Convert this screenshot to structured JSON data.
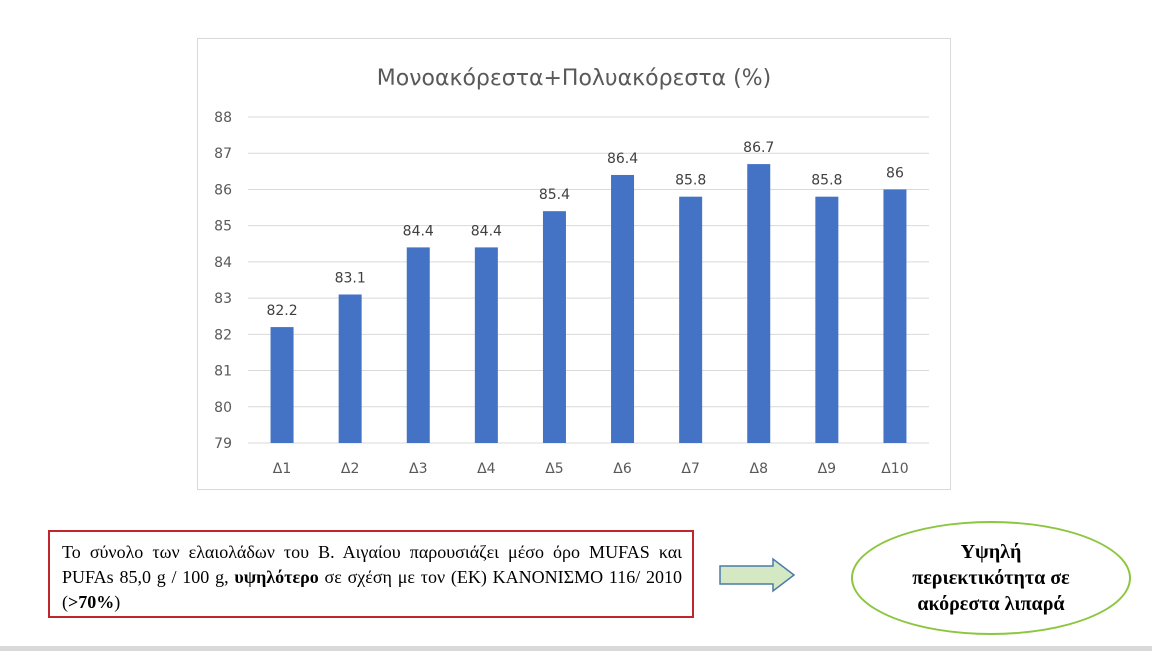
{
  "chart_data": {
    "type": "bar",
    "title": "Μονοακόρεστα+Πολυακόρεστα (%)",
    "categories": [
      "Δ1",
      "Δ2",
      "Δ3",
      "Δ4",
      "Δ5",
      "Δ6",
      "Δ7",
      "Δ8",
      "Δ9",
      "Δ10"
    ],
    "values": [
      82.2,
      83.1,
      84.4,
      84.4,
      85.4,
      86.4,
      85.8,
      86.7,
      85.8,
      86
    ],
    "data_labels": [
      "82.2",
      "83.1",
      "84.4",
      "84.4",
      "85.4",
      "86.4",
      "85.8",
      "86.7",
      "85.8",
      "86"
    ],
    "ylim": [
      79,
      88
    ],
    "yticks": [
      "79",
      "80",
      "81",
      "82",
      "83",
      "84",
      "85",
      "86",
      "87",
      "88"
    ],
    "grid": true,
    "bar_color": "#4472c4",
    "grid_color": "#d9d9d9"
  },
  "note": {
    "part1": "Το σύνολο των ελαιολάδων του Β. Αιγαίου παρουσιάζει μέσο όρο MUFAS και PUFAs 85,0 g / 100 g, ",
    "bold1": "υψηλότερο",
    "part2": " σε σχέση με τον (ΕΚ) ΚΑΝΟΝΙΣΜΟ 116/ 2010 (",
    "bold2": ">70%",
    "part3": ")"
  },
  "conclusion": {
    "line1": "Υψηλή",
    "line2": "περιεκτικότητα σε",
    "line3": "ακόρεστα λιπαρά"
  },
  "colors": {
    "note_border": "#c0272d",
    "ellipse_border": "#8cc63f",
    "arrow_fill": "#d5e8c4",
    "arrow_stroke": "#4a7ba6"
  }
}
